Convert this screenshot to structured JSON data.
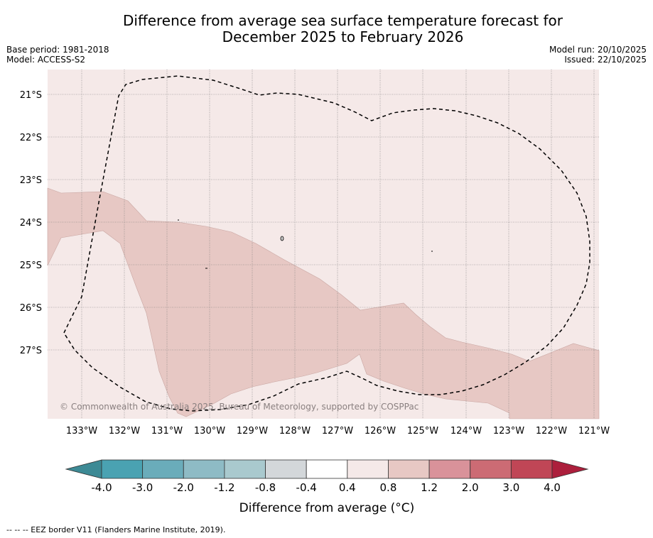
{
  "title": {
    "line1": "Difference from average sea surface temperature forecast for",
    "line2": "December 2025 to February 2026"
  },
  "meta": {
    "base_period": "Base period: 1981-2018",
    "model": "Model: ACCESS-S2",
    "model_run": "Model run: 20/10/2025",
    "issued": "Issued: 22/10/2025"
  },
  "map": {
    "lat_labels": [
      "21°S",
      "22°S",
      "23°S",
      "24°S",
      "25°S",
      "26°S",
      "27°S"
    ],
    "lon_labels": [
      "133°W",
      "132°W",
      "131°W",
      "130°W",
      "129°W",
      "128°W",
      "127°W",
      "126°W",
      "125°W",
      "124°W",
      "123°W",
      "122°W",
      "121°W"
    ],
    "copyright": "© Commonwealth of Australia 2025, Bureau of Meteorology, supported by COSPPac",
    "colors": {
      "background_anomaly": "#f5e9e8",
      "warm_anomaly": "#e7c8c4",
      "eez_line": "#000000"
    }
  },
  "colorbar": {
    "title": "Difference from average (°C)",
    "ticks": [
      "-4.0",
      "-3.0",
      "-2.0",
      "-1.2",
      "-0.8",
      "-0.4",
      "0.4",
      "0.8",
      "1.2",
      "2.0",
      "3.0",
      "4.0"
    ],
    "colors": [
      "#4aa2b2",
      "#6aacba",
      "#8ebbc5",
      "#a9c9ce",
      "#d3d7da",
      "#ffffff",
      "#f5e9e8",
      "#e7c8c4",
      "#d9929a",
      "#cc6b74",
      "#c04656"
    ],
    "under_color": "#3d8a95",
    "over_color": "#ac1f3c"
  },
  "footnote": "-- -- -- EEZ border V11 (Flanders Marine Institute, 2019)."
}
